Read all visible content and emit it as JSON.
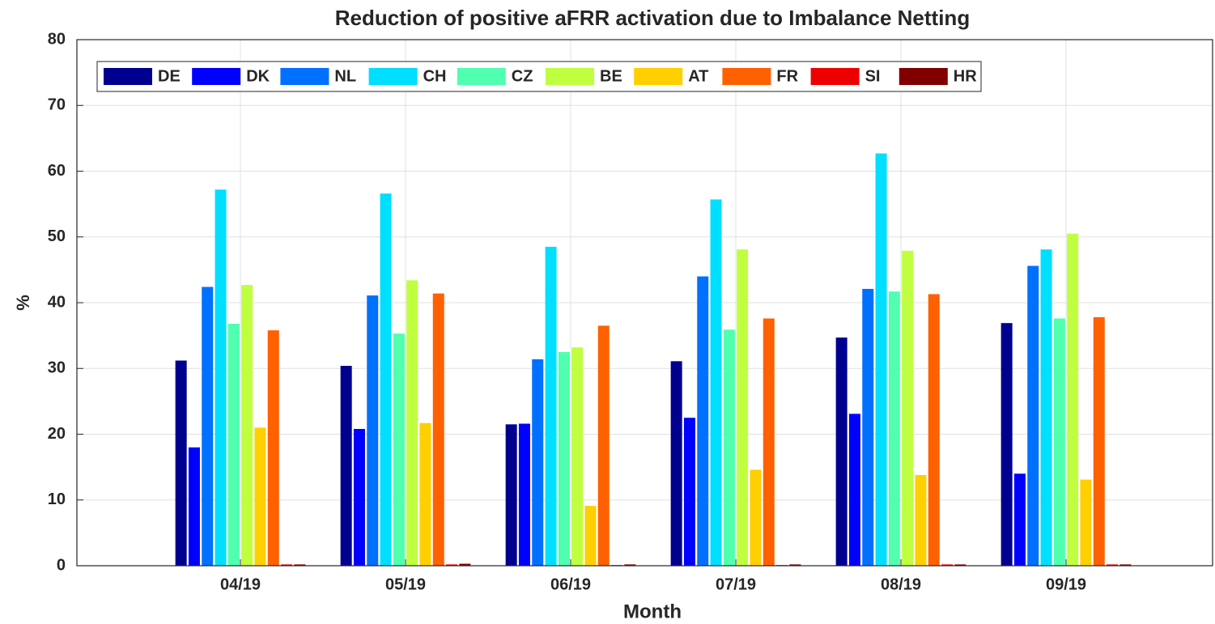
{
  "chart_data": {
    "type": "bar",
    "title": "Reduction of positive aFRR activation due to Imbalance Netting",
    "x_label": "Month",
    "y_label": "%",
    "categories": [
      "04/19",
      "05/19",
      "06/19",
      "07/19",
      "08/19",
      "09/19"
    ],
    "series": [
      {
        "name": "DE",
        "color": "#00008f",
        "values": [
          31.2,
          30.4,
          21.5,
          31.1,
          34.7,
          36.9
        ]
      },
      {
        "name": "DK",
        "color": "#0000ff",
        "values": [
          18.0,
          20.8,
          21.6,
          22.5,
          23.1,
          14.0
        ]
      },
      {
        "name": "NL",
        "color": "#0070ff",
        "values": [
          42.4,
          41.1,
          31.4,
          44.0,
          42.1,
          45.6
        ]
      },
      {
        "name": "CH",
        "color": "#00dfff",
        "values": [
          57.2,
          56.6,
          48.5,
          55.7,
          62.7,
          48.1
        ]
      },
      {
        "name": "CZ",
        "color": "#50ffaf",
        "values": [
          36.8,
          35.3,
          32.5,
          35.9,
          41.7,
          37.6
        ]
      },
      {
        "name": "BE",
        "color": "#bfff40",
        "values": [
          42.7,
          43.4,
          33.2,
          48.1,
          47.9,
          50.5
        ]
      },
      {
        "name": "AT",
        "color": "#ffcf00",
        "values": [
          21.0,
          21.7,
          9.1,
          14.6,
          13.8,
          13.1
        ]
      },
      {
        "name": "FR",
        "color": "#ff6000",
        "values": [
          35.8,
          41.4,
          36.5,
          37.6,
          41.3,
          37.8
        ]
      },
      {
        "name": "SI",
        "color": "#ef0000",
        "values": [
          0.2,
          0.2,
          0.1,
          0.1,
          0.2,
          0.2
        ]
      },
      {
        "name": "HR",
        "color": "#800000",
        "values": [
          0.2,
          0.3,
          0.2,
          0.2,
          0.2,
          0.2
        ]
      }
    ],
    "ylim": [
      0,
      80
    ],
    "yticks": [
      0,
      10,
      20,
      30,
      40,
      50,
      60,
      70,
      80
    ],
    "grid": true,
    "legend": "upper left"
  }
}
